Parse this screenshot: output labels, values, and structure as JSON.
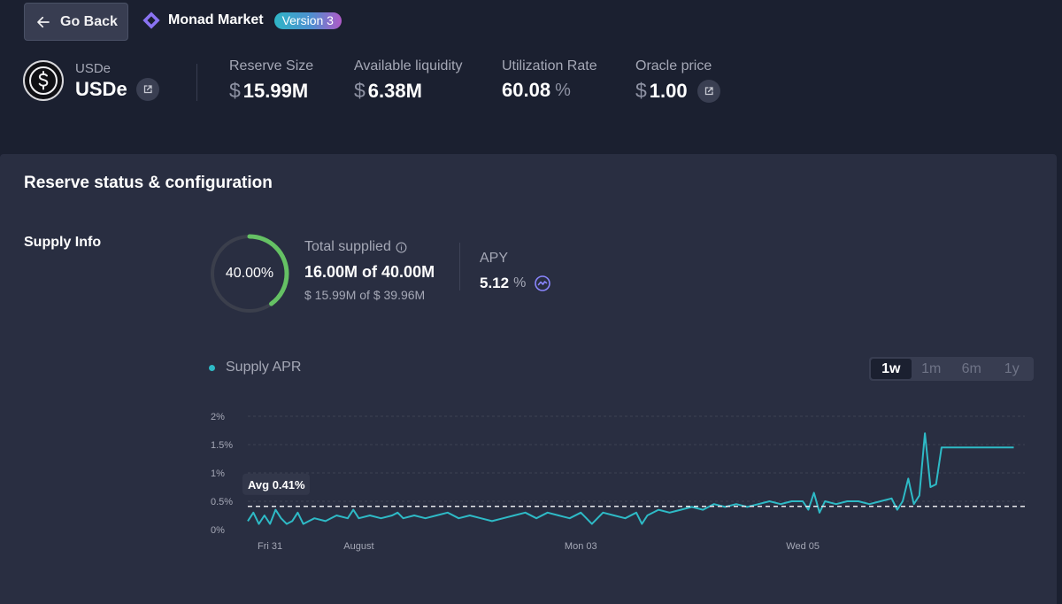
{
  "header": {
    "go_back_label": "Go Back",
    "market_name": "Monad Market",
    "version_badge": "Version 3"
  },
  "asset": {
    "name": "USDe",
    "symbol": "USDe",
    "icon": "dollar-coin-icon"
  },
  "stats": {
    "reserve_size": {
      "label": "Reserve Size",
      "currency": "$",
      "value": "15.99M"
    },
    "available_liquidity": {
      "label": "Available liquidity",
      "currency": "$",
      "value": "6.38M"
    },
    "utilization_rate": {
      "label": "Utilization Rate",
      "value": "60.08",
      "unit": "%"
    },
    "oracle_price": {
      "label": "Oracle price",
      "currency": "$",
      "value": "1.00"
    }
  },
  "panel": {
    "title": "Reserve status & configuration",
    "supply_info_label": "Supply Info",
    "supply_cap_percent": "40.00%",
    "supply_cap_fraction": 0.4,
    "total_supplied_label": "Total supplied",
    "total_supplied_main": "16.00M of 40.00M",
    "total_supplied_sub": "$ 15.99M of $ 39.96M",
    "apy_label": "APY",
    "apy_value": "5.12",
    "apy_unit": "%"
  },
  "colors": {
    "accent_teal": "#2ebac6",
    "ring_green": "#65c164",
    "background": "#1b2030",
    "panel": "#292e41"
  },
  "chart": {
    "legend_label": "Supply APR",
    "timeframes": [
      "1w",
      "1m",
      "6m",
      "1y"
    ],
    "active_timeframe": "1w"
  },
  "chart_data": {
    "type": "line",
    "title": "",
    "xlabel": "",
    "ylabel": "",
    "ylim": [
      0,
      2
    ],
    "y_ticks": [
      "0%",
      "0.5%",
      "1%",
      "1.5%",
      "2%"
    ],
    "x_ticks": [
      "Fri 31",
      "August",
      "Mon 03",
      "Wed 05"
    ],
    "x_range_days": [
      0,
      7
    ],
    "x_tick_positions_days": [
      0.2,
      1.0,
      3.0,
      5.0
    ],
    "average_label": "Avg 0.41%",
    "average_value": 0.41,
    "grid": true,
    "series": [
      {
        "name": "Supply APR",
        "x_days": [
          0.0,
          0.05,
          0.1,
          0.15,
          0.2,
          0.25,
          0.3,
          0.35,
          0.4,
          0.45,
          0.5,
          0.6,
          0.7,
          0.8,
          0.9,
          0.95,
          1.0,
          1.1,
          1.2,
          1.3,
          1.35,
          1.4,
          1.5,
          1.6,
          1.7,
          1.8,
          1.9,
          2.0,
          2.1,
          2.2,
          2.3,
          2.4,
          2.5,
          2.6,
          2.7,
          2.8,
          2.9,
          3.0,
          3.05,
          3.1,
          3.2,
          3.3,
          3.4,
          3.5,
          3.55,
          3.6,
          3.7,
          3.8,
          3.9,
          4.0,
          4.1,
          4.2,
          4.3,
          4.4,
          4.5,
          4.6,
          4.7,
          4.8,
          4.9,
          5.0,
          5.05,
          5.1,
          5.15,
          5.2,
          5.3,
          5.4,
          5.5,
          5.6,
          5.7,
          5.8,
          5.85,
          5.9,
          5.95,
          6.0,
          6.05,
          6.1,
          6.15,
          6.2,
          6.25,
          6.3,
          6.5,
          6.7,
          6.9
        ],
        "values": [
          0.15,
          0.3,
          0.1,
          0.25,
          0.1,
          0.35,
          0.2,
          0.1,
          0.15,
          0.3,
          0.1,
          0.2,
          0.15,
          0.25,
          0.2,
          0.35,
          0.2,
          0.25,
          0.2,
          0.25,
          0.3,
          0.2,
          0.25,
          0.2,
          0.25,
          0.3,
          0.2,
          0.25,
          0.2,
          0.15,
          0.2,
          0.25,
          0.3,
          0.2,
          0.3,
          0.25,
          0.2,
          0.3,
          0.2,
          0.1,
          0.3,
          0.25,
          0.2,
          0.3,
          0.1,
          0.25,
          0.35,
          0.3,
          0.35,
          0.4,
          0.35,
          0.45,
          0.4,
          0.45,
          0.4,
          0.45,
          0.5,
          0.45,
          0.5,
          0.5,
          0.35,
          0.65,
          0.3,
          0.5,
          0.45,
          0.5,
          0.5,
          0.45,
          0.5,
          0.55,
          0.35,
          0.5,
          0.9,
          0.45,
          0.6,
          1.7,
          0.75,
          0.8,
          1.45,
          1.45,
          1.45,
          1.45,
          1.45
        ]
      }
    ]
  }
}
